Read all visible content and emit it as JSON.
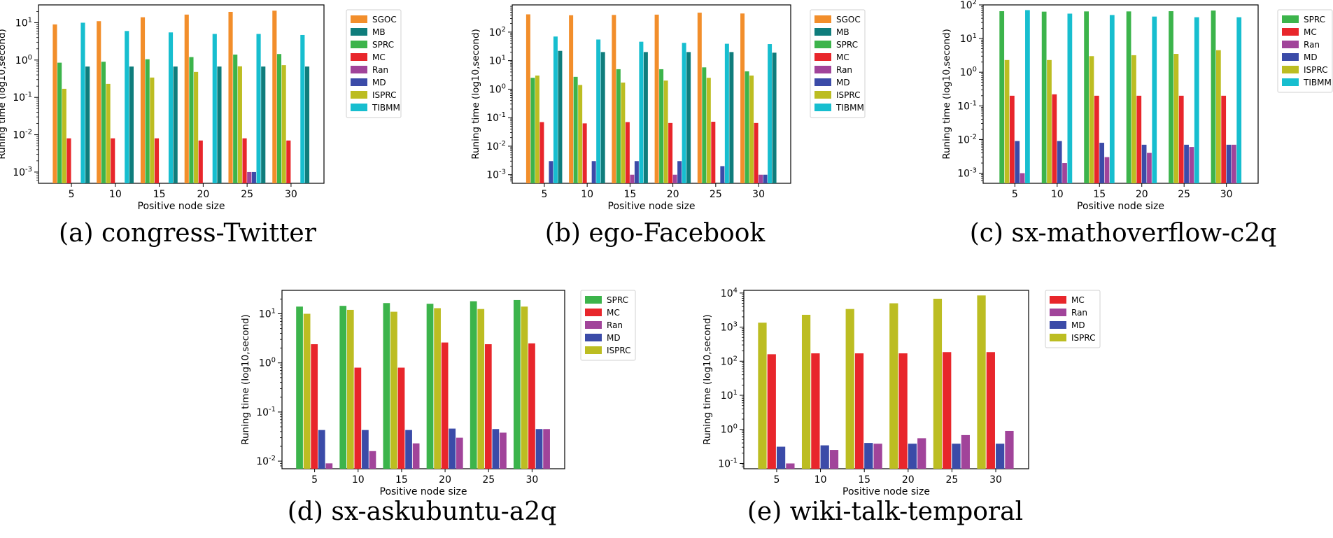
{
  "chart_data": [
    {
      "type": "bar",
      "yscale": "log",
      "title": "(a) congress-Twitter",
      "xlabel": "Positive node size",
      "ylabel": "Runing time (log10,second)",
      "categories": [
        "5",
        "10",
        "15",
        "20",
        "25",
        "30"
      ],
      "ylim": [
        0.0005,
        30
      ],
      "yticks": [
        {
          "value": 0.001,
          "exp": "-3"
        },
        {
          "value": 0.01,
          "exp": "-2"
        },
        {
          "value": 0.1,
          "exp": "-1"
        },
        {
          "value": 1,
          "exp": "0"
        },
        {
          "value": 10,
          "exp": "1"
        }
      ],
      "series": [
        {
          "name": "SGOC",
          "color": "#f28e2b",
          "values": [
            9.0,
            11.0,
            14.0,
            16.5,
            19.5,
            21.0
          ]
        },
        {
          "name": "MB",
          "color": "#0f7d7c",
          "values": [
            null,
            null,
            null,
            null,
            null,
            null
          ]
        },
        {
          "name": "SPRC",
          "color": "#3cb44b",
          "values": [
            0.85,
            0.9,
            1.05,
            1.2,
            1.4,
            1.45
          ]
        },
        {
          "name": "MC",
          "color": "#e8262b",
          "values": [
            0.008,
            0.008,
            0.008,
            0.007,
            0.008,
            0.007
          ]
        },
        {
          "name": "Ran",
          "color": "#a1449a",
          "values": [
            null,
            null,
            null,
            null,
            0.001,
            null
          ]
        },
        {
          "name": "MD",
          "color": "#3b4ba8",
          "values": [
            null,
            null,
            null,
            null,
            0.001,
            null
          ]
        },
        {
          "name": "ISPRC",
          "color": "#bcbd22",
          "values": [
            0.17,
            0.23,
            0.34,
            0.48,
            0.68,
            0.73
          ]
        },
        {
          "name": "TIBMM",
          "color": "#17becf",
          "values": [
            10.0,
            6.0,
            5.5,
            5.0,
            5.0,
            4.7
          ]
        },
        {
          "name": "MB",
          "color": "#0f7d7c",
          "values": [
            0.67,
            0.67,
            0.67,
            0.67,
            0.67,
            0.67
          ]
        }
      ],
      "legend": [
        "SGOC",
        "MB",
        "SPRC",
        "MC",
        "Ran",
        "MD",
        "ISPRC",
        "TIBMM"
      ],
      "legend_colors": [
        "#f28e2b",
        "#0f7d7c",
        "#3cb44b",
        "#e8262b",
        "#a1449a",
        "#3b4ba8",
        "#bcbd22",
        "#17becf"
      ]
    },
    {
      "type": "bar",
      "yscale": "log",
      "title": "(b) ego-Facebook",
      "xlabel": "Positive node size",
      "ylabel": "Runing time (log10,second)",
      "categories": [
        "5",
        "10",
        "15",
        "20",
        "25",
        "30"
      ],
      "ylim": [
        0.0005,
        900
      ],
      "yticks": [
        {
          "value": 0.001,
          "exp": "-3"
        },
        {
          "value": 0.01,
          "exp": "-2"
        },
        {
          "value": 0.1,
          "exp": "-1"
        },
        {
          "value": 1,
          "exp": "0"
        },
        {
          "value": 10,
          "exp": "1"
        },
        {
          "value": 100,
          "exp": "2"
        }
      ],
      "series": [
        {
          "name": "SGOC",
          "color": "#f28e2b",
          "values": [
            420,
            390,
            400,
            410,
            480,
            450
          ]
        },
        {
          "name": "SPRC",
          "color": "#3cb44b",
          "values": [
            2.5,
            2.7,
            5.0,
            5.0,
            5.8,
            4.2
          ]
        },
        {
          "name": "ISPRC",
          "color": "#bcbd22",
          "values": [
            3.0,
            1.4,
            1.7,
            2.0,
            2.5,
            3.0
          ]
        },
        {
          "name": "MC",
          "color": "#e8262b",
          "values": [
            0.07,
            0.063,
            0.07,
            0.065,
            0.072,
            0.065
          ]
        },
        {
          "name": "Ran",
          "color": "#a1449a",
          "values": [
            null,
            null,
            0.001,
            0.001,
            null,
            0.001
          ]
        },
        {
          "name": "MD",
          "color": "#3b4ba8",
          "values": [
            0.003,
            0.003,
            0.003,
            0.003,
            0.002,
            0.001
          ]
        },
        {
          "name": "TIBMM",
          "color": "#17becf",
          "values": [
            70,
            55,
            46,
            42,
            39,
            38
          ]
        },
        {
          "name": "MB",
          "color": "#0f7d7c",
          "values": [
            22,
            20,
            20,
            20,
            20,
            19
          ]
        }
      ],
      "legend": [
        "SGOC",
        "MB",
        "SPRC",
        "MC",
        "Ran",
        "MD",
        "ISPRC",
        "TIBMM"
      ],
      "legend_colors": [
        "#f28e2b",
        "#0f7d7c",
        "#3cb44b",
        "#e8262b",
        "#a1449a",
        "#3b4ba8",
        "#bcbd22",
        "#17becf"
      ]
    },
    {
      "type": "bar",
      "yscale": "log",
      "title": "(c) sx-mathoverflow-c2q",
      "xlabel": "Positive node size",
      "ylabel": "Runing time (log10,second)",
      "categories": [
        "5",
        "10",
        "15",
        "20",
        "25",
        "30"
      ],
      "ylim": [
        0.0005,
        100
      ],
      "yticks": [
        {
          "value": 0.001,
          "exp": "-3"
        },
        {
          "value": 0.01,
          "exp": "-2"
        },
        {
          "value": 0.1,
          "exp": "-1"
        },
        {
          "value": 1,
          "exp": "0"
        },
        {
          "value": 10,
          "exp": "1"
        },
        {
          "value": 100,
          "exp": "2"
        }
      ],
      "series": [
        {
          "name": "SPRC",
          "color": "#3cb44b",
          "values": [
            65,
            63,
            64,
            64,
            65,
            68
          ]
        },
        {
          "name": "ISPRC",
          "color": "#bcbd22",
          "values": [
            2.3,
            2.3,
            3.0,
            3.2,
            3.5,
            4.5
          ]
        },
        {
          "name": "MC",
          "color": "#e8262b",
          "values": [
            0.2,
            0.22,
            0.2,
            0.2,
            0.2,
            0.2
          ]
        },
        {
          "name": "MD",
          "color": "#3b4ba8",
          "values": [
            0.009,
            0.009,
            0.008,
            0.007,
            0.007,
            0.007
          ]
        },
        {
          "name": "Ran",
          "color": "#a1449a",
          "values": [
            0.001,
            0.002,
            0.003,
            0.004,
            0.006,
            0.007
          ]
        },
        {
          "name": "TIBMM",
          "color": "#17becf",
          "values": [
            70,
            55,
            50,
            45,
            43,
            43
          ]
        }
      ],
      "legend": [
        "SPRC",
        "MC",
        "Ran",
        "MD",
        "ISPRC",
        "TIBMM"
      ],
      "legend_colors": [
        "#3cb44b",
        "#e8262b",
        "#a1449a",
        "#3b4ba8",
        "#bcbd22",
        "#17becf"
      ]
    },
    {
      "type": "bar",
      "yscale": "log",
      "title": "(d) sx-askubuntu-a2q",
      "xlabel": "Positive node size",
      "ylabel": "Runing time (log10,second)",
      "categories": [
        "5",
        "10",
        "15",
        "20",
        "25",
        "30"
      ],
      "ylim": [
        0.007,
        30
      ],
      "yticks": [
        {
          "value": 0.01,
          "exp": "-2"
        },
        {
          "value": 0.1,
          "exp": "-1"
        },
        {
          "value": 1,
          "exp": "0"
        },
        {
          "value": 10,
          "exp": "1"
        }
      ],
      "series": [
        {
          "name": "SPRC",
          "color": "#3cb44b",
          "values": [
            14.0,
            14.5,
            16.5,
            16.0,
            18.0,
            19.0
          ]
        },
        {
          "name": "ISPRC",
          "color": "#bcbd22",
          "values": [
            10.0,
            12.0,
            11.0,
            13.0,
            12.5,
            14.0
          ]
        },
        {
          "name": "MC",
          "color": "#e8262b",
          "values": [
            2.4,
            0.8,
            0.8,
            2.6,
            2.4,
            2.5
          ]
        },
        {
          "name": "MD",
          "color": "#3b4ba8",
          "values": [
            0.043,
            0.043,
            0.043,
            0.046,
            0.045,
            0.045
          ]
        },
        {
          "name": "Ran",
          "color": "#a1449a",
          "values": [
            0.009,
            0.016,
            0.023,
            0.03,
            0.038,
            0.045
          ]
        }
      ],
      "legend": [
        "SPRC",
        "MC",
        "Ran",
        "MD",
        "ISPRC"
      ],
      "legend_colors": [
        "#3cb44b",
        "#e8262b",
        "#a1449a",
        "#3b4ba8",
        "#bcbd22"
      ]
    },
    {
      "type": "bar",
      "yscale": "log",
      "title": "(e) wiki-talk-temporal",
      "xlabel": "Positive node size",
      "ylabel": "Runing time (log10,second)",
      "categories": [
        "5",
        "10",
        "15",
        "20",
        "25",
        "30"
      ],
      "ylim": [
        0.07,
        12000
      ],
      "yticks": [
        {
          "value": 0.1,
          "exp": "-1"
        },
        {
          "value": 1,
          "exp": "0"
        },
        {
          "value": 10,
          "exp": "1"
        },
        {
          "value": 100,
          "exp": "2"
        },
        {
          "value": 1000,
          "exp": "3"
        },
        {
          "value": 10000,
          "exp": "4"
        }
      ],
      "series": [
        {
          "name": "ISPRC",
          "color": "#bcbd22",
          "values": [
            1350,
            2300,
            3400,
            5000,
            6800,
            8500
          ]
        },
        {
          "name": "MC",
          "color": "#e8262b",
          "values": [
            160,
            170,
            170,
            170,
            185,
            185
          ]
        },
        {
          "name": "MD",
          "color": "#3b4ba8",
          "values": [
            0.31,
            0.34,
            0.4,
            0.38,
            0.38,
            0.38
          ]
        },
        {
          "name": "Ran",
          "color": "#a1449a",
          "values": [
            0.1,
            0.25,
            0.38,
            0.55,
            0.68,
            0.9
          ]
        }
      ],
      "legend": [
        "MC",
        "Ran",
        "MD",
        "ISPRC"
      ],
      "legend_colors": [
        "#e8262b",
        "#a1449a",
        "#3b4ba8",
        "#bcbd22"
      ]
    }
  ]
}
